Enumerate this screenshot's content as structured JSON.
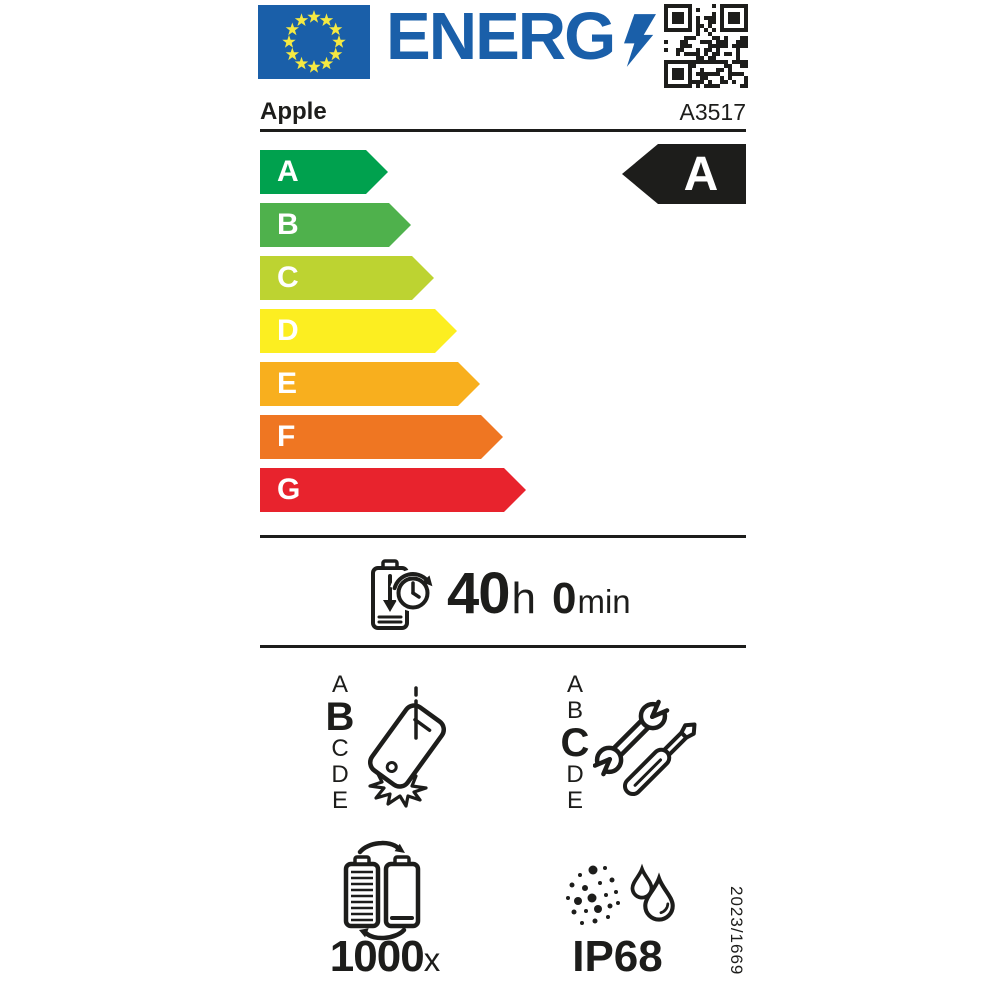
{
  "header": {
    "wordmark": "ENERG",
    "flag_icon": "eu-flag",
    "bolt_icon": "lightning-bolt",
    "qr_icon": "qr-code"
  },
  "product": {
    "brand": "Apple",
    "model": "A3517"
  },
  "colors": {
    "logo_blue": "#1a5fa9",
    "star_yellow": "#f5e942",
    "black": "#1d1d1b"
  },
  "energy_scale": {
    "grades": [
      {
        "letter": "A",
        "color": "#00a14e"
      },
      {
        "letter": "B",
        "color": "#4fb14c"
      },
      {
        "letter": "C",
        "color": "#bdd331"
      },
      {
        "letter": "D",
        "color": "#fcee21"
      },
      {
        "letter": "E",
        "color": "#f8af1e"
      },
      {
        "letter": "F",
        "color": "#ef7622"
      },
      {
        "letter": "G",
        "color": "#e8232d"
      }
    ],
    "rating": "A"
  },
  "battery_endurance": {
    "hours": "40",
    "hours_unit": "h",
    "minutes": "0",
    "minutes_unit": "min"
  },
  "drop_resistance": {
    "scale": [
      "A",
      "B",
      "C",
      "D",
      "E"
    ],
    "rating": "B"
  },
  "repairability": {
    "scale": [
      "A",
      "B",
      "C",
      "D",
      "E"
    ],
    "rating": "C"
  },
  "battery_cycles": {
    "count": "1000",
    "unit": "x"
  },
  "ingress_protection": {
    "rating": "IP68"
  },
  "regulation_number": "2023/1669"
}
